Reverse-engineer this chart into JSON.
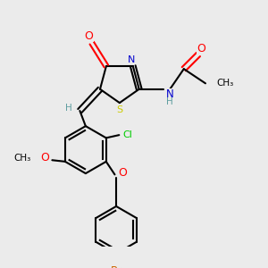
{
  "bg_color": "#ebebeb",
  "atom_colors": {
    "O": "#ff0000",
    "N": "#0000cd",
    "S": "#cccc00",
    "Cl": "#00cc00",
    "Br": "#cc6600",
    "C": "#000000",
    "H": "#5f9ea0"
  }
}
